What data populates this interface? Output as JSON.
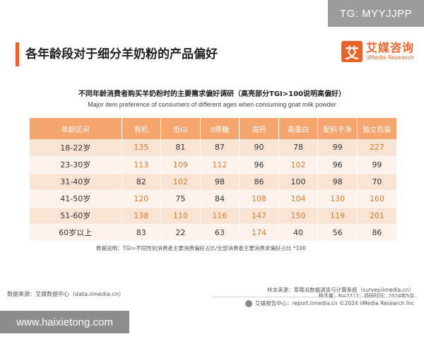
{
  "watermark_top": "TG: MYYJJPP",
  "watermark_bottom": "www.haixietong.com",
  "page_title": "各年龄段对于细分羊奶粉的产品偏好",
  "logo": {
    "mark": "艾",
    "cn": "艾媒咨询",
    "en": "iiMedia Research",
    "color": "#e8632a"
  },
  "chart_data": {
    "type": "table",
    "title": "不同年龄消费者购买羊奶粉时的主要需求偏好调研（高亮部分TGI>100说明高偏好）",
    "subtitle": "Major item preference of consumers of different ages when consuming goat milk powder",
    "columns": [
      "年龄区间",
      "有机",
      "低Gi",
      "0蔗糖",
      "高钙",
      "高蛋白",
      "配料干净",
      "独立包装"
    ],
    "rows": [
      {
        "age": "18-22岁",
        "values": [
          135,
          81,
          87,
          90,
          78,
          99,
          227
        ]
      },
      {
        "age": "23-30岁",
        "values": [
          113,
          109,
          112,
          96,
          102,
          96,
          99
        ]
      },
      {
        "age": "31-40岁",
        "values": [
          82,
          102,
          98,
          86,
          100,
          98,
          70
        ]
      },
      {
        "age": "41-50岁",
        "values": [
          120,
          75,
          84,
          108,
          104,
          130,
          160
        ]
      },
      {
        "age": "51-60岁",
        "values": [
          138,
          110,
          116,
          147,
          150,
          119,
          201
        ]
      },
      {
        "age": "60岁以上",
        "values": [
          83,
          22,
          63,
          174,
          40,
          56,
          86
        ]
      }
    ],
    "highlight_colors": {
      "header": "#f5a66e",
      "high_value_text": "#e07b2c"
    }
  },
  "note": "数据说明：TGI=不同性别消费者主要消费偏好占比/全部消费者主要消费求偏好占比 *100",
  "source_left": "数据来源：艾媒数据中心（data.iimedia.cn）",
  "sample_source": "样本来源：草莓派数据调查与计算系统（survey.iimedia.cn）",
  "sample_info": "样本量：N=2217；调研时间：2024年5月",
  "footer": "艾媒报告中心：report.iimedia.cn    ©2024  iiMedia Research  Inc"
}
